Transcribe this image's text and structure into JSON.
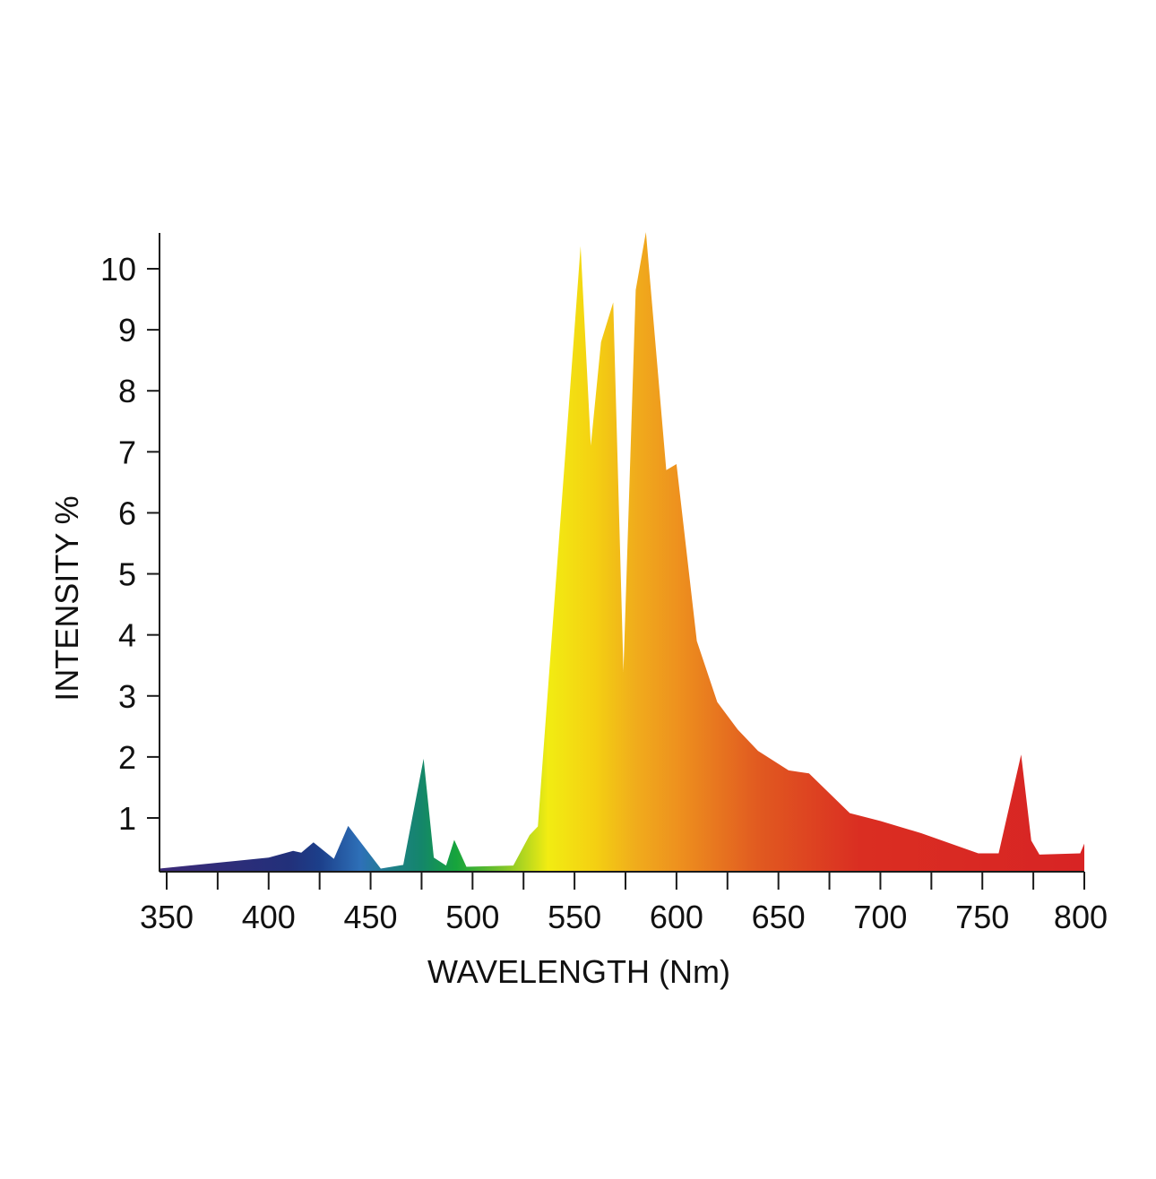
{
  "chart_data": {
    "type": "area",
    "xlabel": "WAVELENGTH (Nm)",
    "ylabel": "INTENSITY %",
    "xlim": [
      345,
      800
    ],
    "ylim": [
      0.1,
      10.6
    ],
    "x_ticks": [
      350,
      400,
      450,
      500,
      550,
      600,
      650,
      700,
      750,
      800
    ],
    "x_minor_ticks": [
      375,
      425,
      475,
      525,
      575,
      625,
      675,
      725,
      775
    ],
    "y_ticks": [
      1,
      2,
      3,
      4,
      5,
      6,
      7,
      8,
      9,
      10
    ],
    "grid": false,
    "fill": "spectral-gradient",
    "gradient_stops": [
      {
        "wavelength": 350,
        "color": "#3a2a78"
      },
      {
        "wavelength": 410,
        "color": "#22307a"
      },
      {
        "wavelength": 425,
        "color": "#1c3f8a"
      },
      {
        "wavelength": 445,
        "color": "#2e70b8"
      },
      {
        "wavelength": 460,
        "color": "#1e7f8a"
      },
      {
        "wavelength": 475,
        "color": "#14866a"
      },
      {
        "wavelength": 492,
        "color": "#16a43c"
      },
      {
        "wavelength": 515,
        "color": "#7dc42a"
      },
      {
        "wavelength": 537,
        "color": "#f2ec12"
      },
      {
        "wavelength": 560,
        "color": "#f4d012"
      },
      {
        "wavelength": 580,
        "color": "#f0ac1c"
      },
      {
        "wavelength": 600,
        "color": "#ee921e"
      },
      {
        "wavelength": 640,
        "color": "#e15a20"
      },
      {
        "wavelength": 690,
        "color": "#da2e22"
      },
      {
        "wavelength": 800,
        "color": "#d82424"
      }
    ],
    "series": [
      {
        "x": [
          345,
          400,
          412,
          416,
          422,
          432,
          439,
          455,
          466,
          476,
          481,
          487,
          491,
          497,
          520,
          528,
          532,
          553,
          558,
          563,
          569,
          574,
          580,
          585,
          595,
          600,
          610,
          620,
          630,
          640,
          655,
          665,
          685,
          700,
          720,
          748,
          758,
          769,
          774,
          778,
          798,
          800
        ],
        "y": [
          0.17,
          0.35,
          0.46,
          0.43,
          0.6,
          0.33,
          0.87,
          0.17,
          0.23,
          1.97,
          0.35,
          0.22,
          0.64,
          0.2,
          0.22,
          0.72,
          0.86,
          10.37,
          7.1,
          8.8,
          9.45,
          3.4,
          9.65,
          10.6,
          6.7,
          6.8,
          3.9,
          2.9,
          2.45,
          2.1,
          1.78,
          1.73,
          1.08,
          0.95,
          0.75,
          0.42,
          0.42,
          2.04,
          0.63,
          0.4,
          0.42,
          0.58
        ]
      }
    ]
  }
}
